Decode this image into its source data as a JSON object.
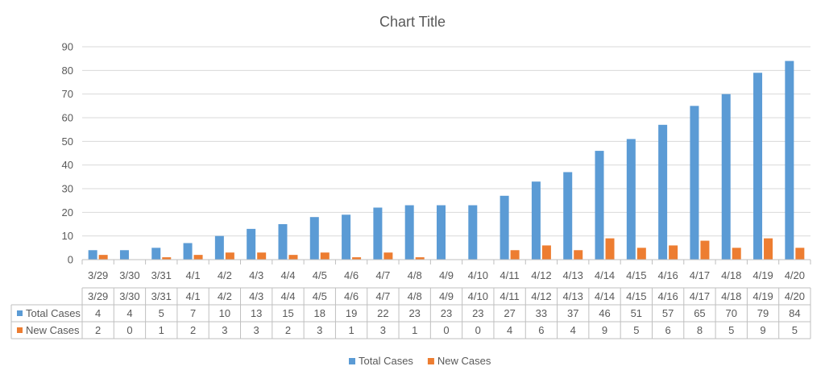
{
  "chart_data": {
    "type": "bar",
    "title": "Chart Title",
    "xlabel": "",
    "ylabel": "",
    "ylim": [
      0,
      90
    ],
    "yticks": [
      0,
      10,
      20,
      30,
      40,
      50,
      60,
      70,
      80,
      90
    ],
    "grid": true,
    "legend": "bottom",
    "categories": [
      "3/29",
      "3/30",
      "3/31",
      "4/1",
      "4/2",
      "4/3",
      "4/4",
      "4/5",
      "4/6",
      "4/7",
      "4/8",
      "4/9",
      "4/10",
      "4/11",
      "4/12",
      "4/13",
      "4/14",
      "4/15",
      "4/16",
      "4/17",
      "4/18",
      "4/19",
      "4/20"
    ],
    "series": [
      {
        "name": "Total Cases",
        "color": "#5b9bd5",
        "values": [
          4,
          4,
          5,
          7,
          10,
          13,
          15,
          18,
          19,
          22,
          23,
          23,
          23,
          27,
          33,
          37,
          46,
          51,
          57,
          65,
          70,
          79,
          84
        ]
      },
      {
        "name": "New Cases",
        "color": "#ed7d31",
        "values": [
          2,
          0,
          1,
          2,
          3,
          3,
          2,
          3,
          1,
          3,
          1,
          0,
          0,
          4,
          6,
          4,
          9,
          5,
          6,
          8,
          5,
          9,
          5
        ]
      }
    ],
    "data_table": true
  }
}
